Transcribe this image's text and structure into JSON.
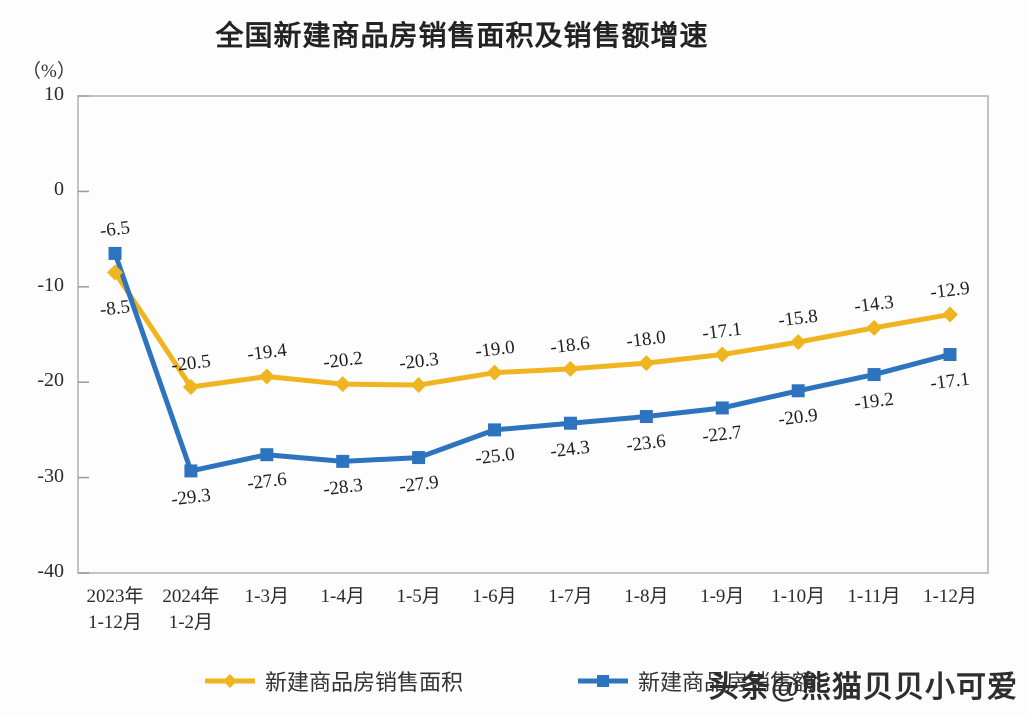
{
  "title": "全国新建商品房销售面积及销售额增速",
  "y_axis_unit": "（%）",
  "watermark": "头条@熊猫贝贝小可爱",
  "chart_data": {
    "type": "line",
    "title": "全国新建商品房销售面积及销售额增速",
    "y_unit": "（%）",
    "categories": [
      "2023年\n1-12月",
      "2024年\n1-2月",
      "1-3月",
      "1-4月",
      "1-5月",
      "1-6月",
      "1-7月",
      "1-8月",
      "1-9月",
      "1-10月",
      "1-11月",
      "1-12月"
    ],
    "series": [
      {
        "name": "新建商品房销售面积",
        "color": "#EFB41F",
        "marker": "diamond",
        "label_side": "above",
        "first_label_side": "below",
        "values": [
          -8.5,
          -20.5,
          -19.4,
          -20.2,
          -20.3,
          -19.0,
          -18.6,
          -18.0,
          -17.1,
          -15.8,
          -14.3,
          -12.9
        ]
      },
      {
        "name": "新建商品房销售额",
        "color": "#2E73BE",
        "marker": "square",
        "label_side": "below",
        "first_label_side": "above",
        "values": [
          -6.5,
          -29.3,
          -27.6,
          -28.3,
          -27.9,
          -25.0,
          -24.3,
          -23.6,
          -22.7,
          -20.9,
          -19.2,
          -17.1
        ]
      }
    ],
    "ylim": [
      -40,
      10
    ],
    "y_ticks": [
      10,
      0,
      -10,
      -20,
      -30,
      -40
    ],
    "grid": "off",
    "legend_position": "bottom",
    "frame_color": "#b5b5b5"
  }
}
